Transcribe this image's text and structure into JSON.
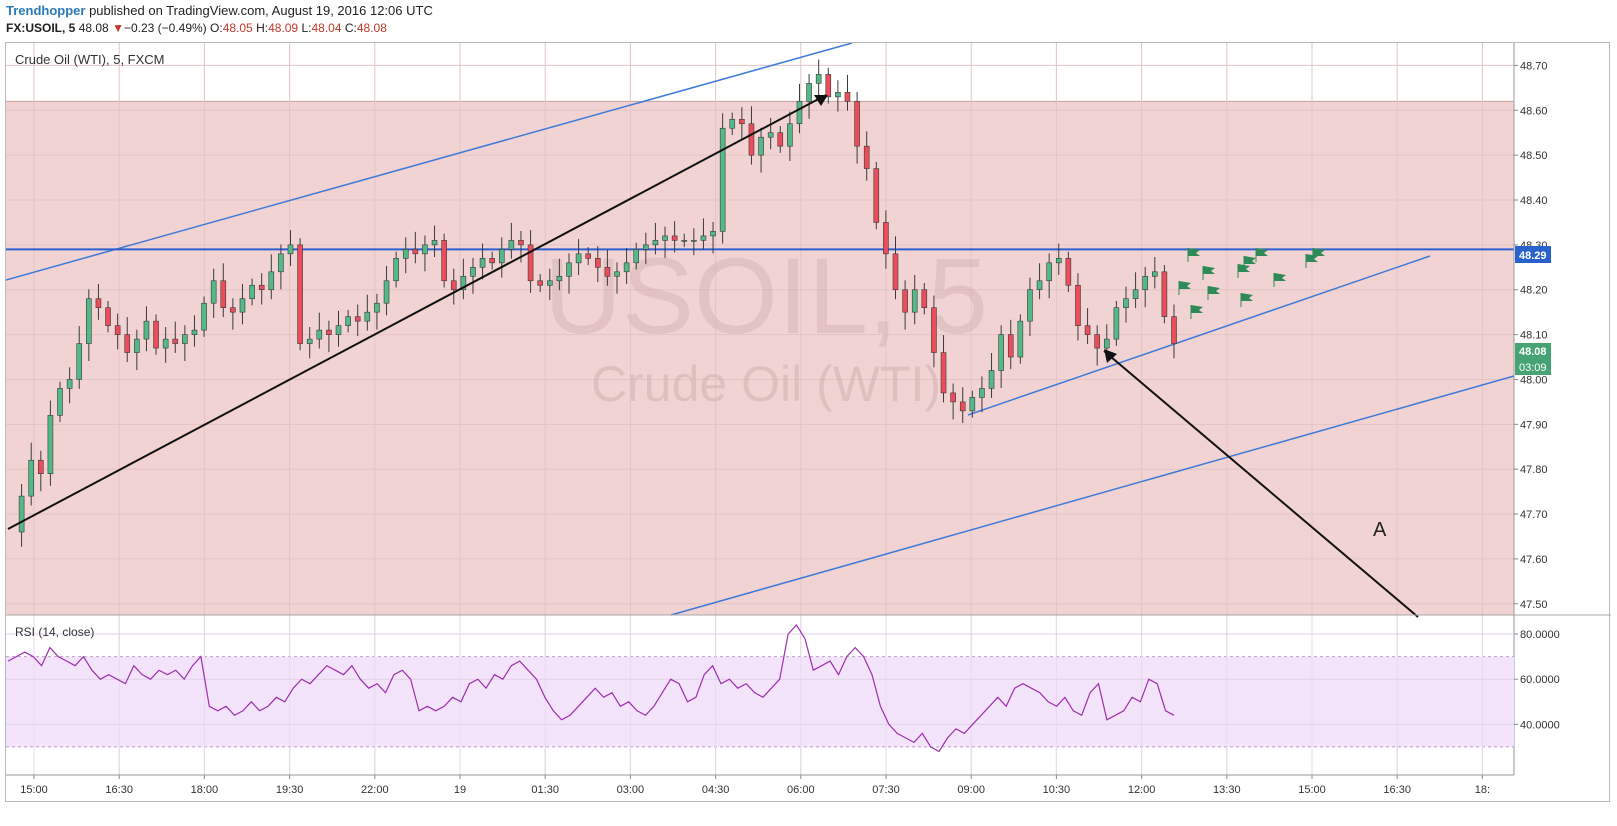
{
  "header": {
    "author": "Trendhopper",
    "published_text": " published on TradingView.com, August 19, 2016 12:06 UTC",
    "symbol": "FX:USOIL, 5",
    "last": "48.08",
    "change_arrow": "▼",
    "change": "−0.23 (−0.49%)",
    "o_label": "O:",
    "o": "48.05",
    "h_label": "H:",
    "h": "48.09",
    "l_label": "L:",
    "l": "48.04",
    "c_label": "C:",
    "c": "48.08"
  },
  "chart_data": [
    {
      "type": "candlestick",
      "title": "Crude Oil (WTI), 5, FXCM",
      "watermark_symbol": "USOIL, 5",
      "watermark_name": "Crude Oil (WTI)",
      "x_ticks": [
        "15:00",
        "16:30",
        "18:00",
        "19:30",
        "22:00",
        "19",
        "01:30",
        "03:00",
        "04:30",
        "06:00",
        "07:30",
        "09:00",
        "10:30",
        "12:00",
        "13:30",
        "15:00",
        "16:30",
        "18:"
      ],
      "y_ticks": [
        "48.70",
        "48.60",
        "48.50",
        "48.40",
        "48.30",
        "48.20",
        "48.10",
        "48.00",
        "47.90",
        "47.80",
        "47.70",
        "47.60",
        "47.50"
      ],
      "ylim": [
        47.475,
        48.75
      ],
      "price_series_approx": [
        47.66,
        47.74,
        47.82,
        47.79,
        47.92,
        47.98,
        48.0,
        48.08,
        48.18,
        48.16,
        48.12,
        48.1,
        48.06,
        48.09,
        48.13,
        48.07,
        48.09,
        48.08,
        48.1,
        48.11,
        48.17,
        48.22,
        48.16,
        48.15,
        48.18,
        48.21,
        48.2,
        48.24,
        48.28,
        48.3,
        48.08,
        48.09,
        48.11,
        48.1,
        48.12,
        48.14,
        48.13,
        48.15,
        48.17,
        48.22,
        48.27,
        48.29,
        48.28,
        48.3,
        48.31,
        48.22,
        48.2,
        48.23,
        48.25,
        48.27,
        48.26,
        48.29,
        48.31,
        48.3,
        48.22,
        48.21,
        48.22,
        48.23,
        48.26,
        48.28,
        48.27,
        48.25,
        48.23,
        48.24,
        48.26,
        48.29,
        48.3,
        48.31,
        48.32,
        48.31,
        48.31,
        48.31,
        48.32,
        48.33,
        48.56,
        48.58,
        48.57,
        48.5,
        48.54,
        48.55,
        48.52,
        48.57,
        48.62,
        48.66,
        48.68,
        48.63,
        48.64,
        48.62,
        48.52,
        48.47,
        48.35,
        48.28,
        48.2,
        48.15,
        48.2,
        48.16,
        48.06,
        47.97,
        47.95,
        47.93,
        47.96,
        47.98,
        48.02,
        48.1,
        48.05,
        48.13,
        48.2,
        48.22,
        48.26,
        48.27,
        48.21,
        48.12,
        48.1,
        48.07,
        48.09,
        48.16,
        48.18,
        48.2,
        48.23,
        48.24,
        48.14,
        48.08
      ],
      "horizontal_level": 48.29,
      "resistance_zone": [
        47.475,
        48.62
      ],
      "price_labels": [
        "48.29",
        "48.08",
        "03:09"
      ],
      "annotation_text": "A",
      "colors": {
        "up": "#53b987",
        "down": "#eb4d5c",
        "candle": "#3a3a3a",
        "zone": "#f2d3d3",
        "blue": "#2962c9",
        "flag": "#2e8b57",
        "trend": "#111111"
      }
    },
    {
      "type": "line",
      "title": "RSI (14, close)",
      "y_ticks": [
        "80.0000",
        "60.0000",
        "40.0000"
      ],
      "ylim": [
        18,
        88
      ],
      "band": [
        30,
        70
      ],
      "values_approx": [
        68,
        70,
        72,
        70,
        66,
        74,
        70,
        68,
        66,
        70,
        64,
        60,
        62,
        60,
        58,
        66,
        62,
        60,
        64,
        62,
        64,
        60,
        66,
        70,
        48,
        46,
        48,
        44,
        46,
        50,
        46,
        48,
        52,
        50,
        56,
        60,
        58,
        62,
        66,
        64,
        62,
        66,
        60,
        56,
        58,
        54,
        62,
        64,
        60,
        46,
        48,
        46,
        48,
        52,
        50,
        58,
        60,
        56,
        62,
        60,
        66,
        68,
        64,
        60,
        52,
        46,
        42,
        44,
        48,
        52,
        56,
        52,
        54,
        48,
        50,
        46,
        44,
        48,
        54,
        60,
        58,
        50,
        52,
        62,
        66,
        58,
        60,
        56,
        58,
        54,
        52,
        56,
        60,
        80,
        84,
        78,
        64,
        66,
        68,
        62,
        70,
        74,
        70,
        62,
        48,
        40,
        36,
        34,
        32,
        36,
        30,
        28,
        34,
        38,
        36,
        40,
        44,
        48,
        52,
        48,
        56,
        58,
        56,
        54,
        50,
        48,
        52,
        46,
        44,
        54,
        58,
        42,
        44,
        46,
        52,
        50,
        60,
        58,
        46,
        44
      ],
      "colors": {
        "line": "#9b2fae",
        "band_fill": "#f4e4fb"
      }
    }
  ]
}
